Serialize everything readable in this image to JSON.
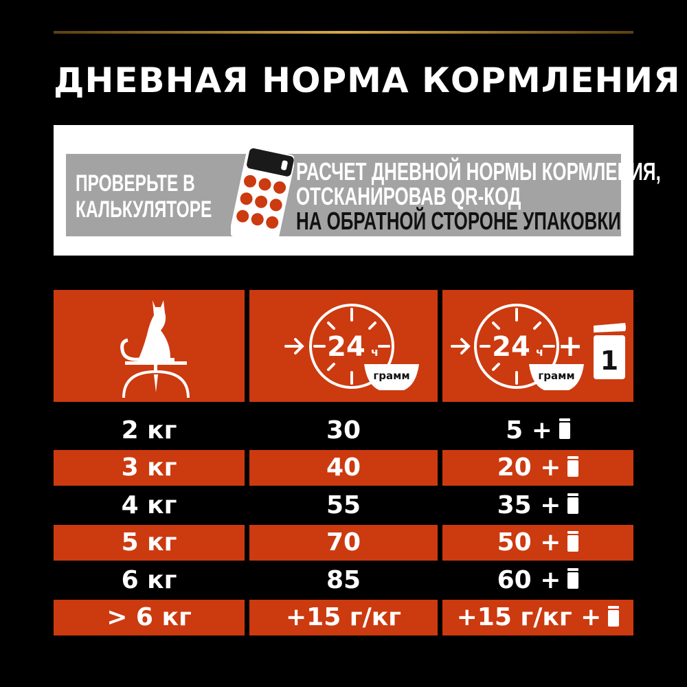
{
  "title": "ДНЕВНАЯ НОРМА КОРМЛЕНИЯ",
  "calculator": {
    "left_lines": [
      "ПРОВЕРЬТЕ В",
      "КАЛЬКУЛЯТОРЕ"
    ],
    "right_lines": [
      "РАСЧЕТ ДНЕВНОЙ НОРМЫ КОРМЛЕНИЯ,",
      "ОТСКАНИРОВАВ QR-КОД",
      "НА ОБРАТНОЙ СТОРОНЕ УПАКОВКИ"
    ]
  },
  "header": {
    "clock_text": "24",
    "clock_unit": "ч",
    "bowl_text": "грамм",
    "plus": "+",
    "can_number": "1"
  },
  "colors": {
    "accent": "#cc3a10",
    "panel_gray": "#a3a3a3"
  },
  "rows": [
    {
      "weight": "2 кг",
      "dry": "30",
      "mixed": "5 +"
    },
    {
      "weight": "3 кг",
      "dry": "40",
      "mixed": "20 +"
    },
    {
      "weight": "4 кг",
      "dry": "55",
      "mixed": "35 +"
    },
    {
      "weight": "5 кг",
      "dry": "70",
      "mixed": "50 +"
    },
    {
      "weight": "6 кг",
      "dry": "85",
      "mixed": "60 +"
    },
    {
      "weight": "> 6 кг",
      "dry": "+15 г/кг",
      "mixed": "+15 г/кг +"
    }
  ]
}
